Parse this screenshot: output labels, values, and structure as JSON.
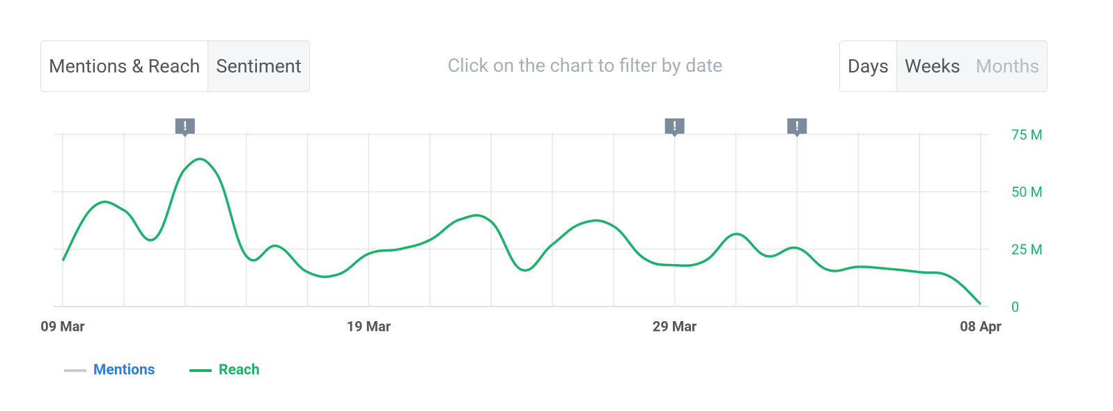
{
  "view_tabs": [
    "Mentions & Reach",
    "Sentiment"
  ],
  "hint": "Click on the chart to filter by date",
  "period_tabs": [
    "Days",
    "Weeks",
    "Months"
  ],
  "chart_data": {
    "type": "line",
    "categories": [
      "09 Mar",
      null,
      null,
      null,
      null,
      null,
      null,
      null,
      null,
      null,
      "19 Mar",
      null,
      null,
      null,
      null,
      null,
      null,
      null,
      null,
      null,
      "29 Mar",
      null,
      null,
      null,
      null,
      null,
      null,
      null,
      null,
      null,
      "08 Apr"
    ],
    "series": [
      {
        "name": "Mentions",
        "color": "#cccccc"
      },
      {
        "name": "Reach",
        "color": "#1db26b",
        "axis": "y2",
        "values": [
          20,
          43.4,
          42,
          29.5,
          60,
          58.6,
          22,
          26.4,
          15,
          14,
          23,
          25,
          29,
          38,
          37,
          16,
          27,
          36.4,
          35,
          21,
          18,
          20,
          31.6,
          22,
          25.5,
          16,
          17.3,
          16.4,
          15,
          13,
          1
        ]
      }
    ],
    "y2lim": [
      0,
      75
    ],
    "y2ticks": [
      0,
      {
        "value": 25,
        "label": "25 M"
      },
      {
        "value": 50,
        "label": "50 M"
      },
      {
        "value": 75,
        "label": "75 M"
      }
    ],
    "grid": true,
    "flags": [
      {
        "index": 4,
        "label": "!"
      },
      {
        "index": 20,
        "label": "!"
      },
      {
        "index": 24,
        "label": "!"
      }
    ]
  }
}
